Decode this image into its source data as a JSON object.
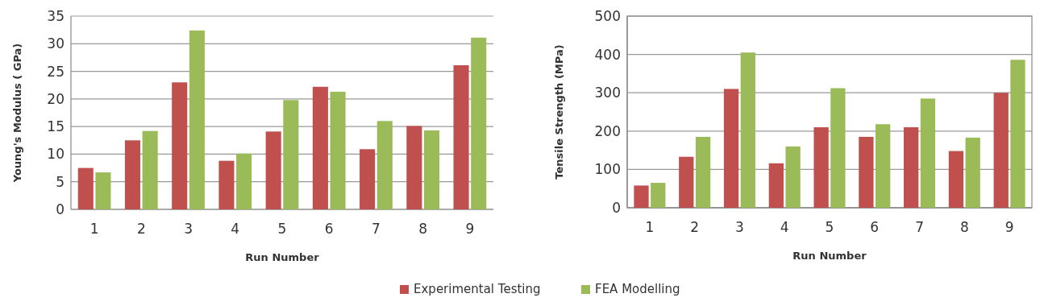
{
  "chart_data": [
    {
      "type": "bar",
      "xlabel": "Run Number",
      "ylabel": "Young's Modulus ( GPa)",
      "categories": [
        "1",
        "2",
        "3",
        "4",
        "5",
        "6",
        "7",
        "8",
        "9"
      ],
      "series": [
        {
          "name": "Experimental Testing",
          "color": "#c0504d",
          "values": [
            7.5,
            12.5,
            23,
            8.8,
            14.1,
            22.2,
            10.9,
            15.1,
            26.1
          ]
        },
        {
          "name": "FEA Modelling",
          "color": "#9bbb59",
          "values": [
            6.7,
            14.2,
            32.4,
            10.1,
            19.8,
            21.3,
            16,
            14.3,
            31.1
          ]
        }
      ],
      "ylim": [
        0,
        35
      ],
      "yticks": [
        0,
        5,
        10,
        15,
        20,
        25,
        30,
        35
      ],
      "grid": "y",
      "legend": "bottom"
    },
    {
      "type": "bar",
      "xlabel": "Run Number",
      "ylabel": "Tensile Strength (MPa)",
      "categories": [
        "1",
        "2",
        "3",
        "4",
        "5",
        "6",
        "7",
        "8",
        "9"
      ],
      "series": [
        {
          "name": "Experimental Testing",
          "color": "#c0504d",
          "values": [
            58,
            133,
            310,
            116,
            210,
            185,
            210,
            148,
            300
          ]
        },
        {
          "name": "FEA Modelling",
          "color": "#9bbb59",
          "values": [
            65,
            185,
            405,
            160,
            312,
            218,
            285,
            183,
            386
          ]
        }
      ],
      "ylim": [
        0,
        500
      ],
      "yticks": [
        0,
        100,
        200,
        300,
        400,
        500
      ],
      "grid": "y",
      "legend": "bottom"
    }
  ]
}
